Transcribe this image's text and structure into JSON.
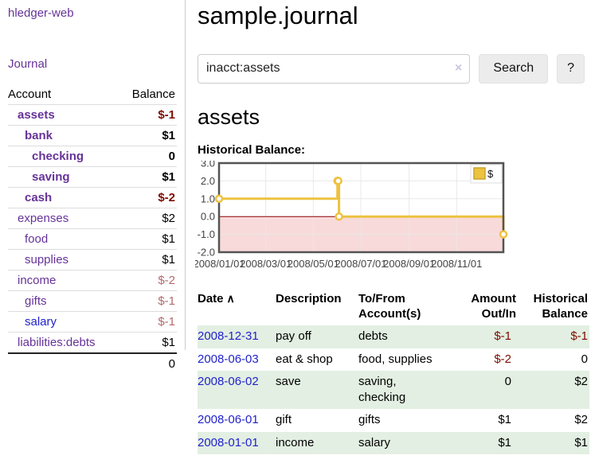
{
  "app": {
    "title": "hledger-web"
  },
  "nav": {
    "journal_label": "Journal"
  },
  "sidebar": {
    "accounts_table": {
      "headers": {
        "account": "Account",
        "balance": "Balance"
      },
      "rows": [
        {
          "name": "assets",
          "balance": "$-1",
          "indent": 1,
          "bold": true,
          "link_color": "purple",
          "balance_color": "neg-strong"
        },
        {
          "name": "bank",
          "balance": "$1",
          "indent": 2,
          "bold": true,
          "link_color": "purple",
          "balance_color": ""
        },
        {
          "name": "checking",
          "balance": "0",
          "indent": 3,
          "bold": true,
          "link_color": "purple",
          "balance_color": ""
        },
        {
          "name": "saving",
          "balance": "$1",
          "indent": 3,
          "bold": true,
          "link_color": "purple",
          "balance_color": ""
        },
        {
          "name": "cash",
          "balance": "$-2",
          "indent": 2,
          "bold": true,
          "link_color": "purple",
          "balance_color": "neg-strong"
        },
        {
          "name": "expenses",
          "balance": "$2",
          "indent": 1,
          "bold": false,
          "link_color": "purple",
          "balance_color": ""
        },
        {
          "name": "food",
          "balance": "$1",
          "indent": 2,
          "bold": false,
          "link_color": "purple",
          "balance_color": ""
        },
        {
          "name": "supplies",
          "balance": "$1",
          "indent": 2,
          "bold": false,
          "link_color": "purple",
          "balance_color": ""
        },
        {
          "name": "income",
          "balance": "$-2",
          "indent": 1,
          "bold": false,
          "link_color": "purple",
          "balance_color": "neg-muted"
        },
        {
          "name": "gifts",
          "balance": "$-1",
          "indent": 2,
          "bold": false,
          "link_color": "purple",
          "balance_color": "neg-muted"
        },
        {
          "name": "salary",
          "balance": "$-1",
          "indent": 2,
          "bold": false,
          "link_color": "blue",
          "balance_color": "neg-muted"
        },
        {
          "name": "liabilities:debts",
          "balance": "$1",
          "indent": 1,
          "bold": false,
          "link_color": "purple",
          "balance_color": ""
        }
      ],
      "total": "0"
    }
  },
  "header": {
    "title": "sample.journal"
  },
  "search": {
    "query": "inacct:assets",
    "clear_icon": "×",
    "search_label": "Search",
    "help_label": "?"
  },
  "account_page": {
    "heading": "assets",
    "chart_title": "Historical Balance:"
  },
  "chart_data": {
    "type": "line",
    "style": "steps-with-markers",
    "title": "Historical Balance:",
    "series": [
      {
        "name": "$",
        "color": "#edc240",
        "points": [
          [
            "2008-01-01",
            1
          ],
          [
            "2008-06-01",
            2
          ],
          [
            "2008-06-02",
            2
          ],
          [
            "2008-06-03",
            0
          ],
          [
            "2008-12-31",
            -1
          ]
        ]
      }
    ],
    "xrange": [
      "2008-01-01",
      "2008-12-31"
    ],
    "xticks": [
      {
        "date": "2008-01-01",
        "label": "2008/01/01"
      },
      {
        "date": "2008-03-01",
        "label": "2008/03/01"
      },
      {
        "date": "2008-05-01",
        "label": "2008/05/01"
      },
      {
        "date": "2008-07-01",
        "label": "2008/07/01"
      },
      {
        "date": "2008-09-01",
        "label": "2008/09/01"
      },
      {
        "date": "2008-11-01",
        "label": "2008/11/01"
      }
    ],
    "ylim": [
      -2,
      3
    ],
    "yticks": [
      {
        "value": 3,
        "label": "3.0"
      },
      {
        "value": 2,
        "label": "2.0"
      },
      {
        "value": 1,
        "label": "1.0"
      },
      {
        "value": 0,
        "label": "0.0"
      },
      {
        "value": -1,
        "label": "-1.0"
      },
      {
        "value": -2,
        "label": "-2.0"
      }
    ],
    "grid": true,
    "negative_region_fill": "#f9dada",
    "zero_line_color": "#8b0000",
    "border_color": "#545454",
    "legend": {
      "label": "$",
      "position": "top-right"
    }
  },
  "register": {
    "sort_icon": "∧",
    "headers": [
      {
        "l1": "Date",
        "l2": ""
      },
      {
        "l1": "Description",
        "l2": ""
      },
      {
        "l1": "To/From",
        "l2": "Account(s)"
      },
      {
        "l1": "Amount",
        "l2": "Out/In"
      },
      {
        "l1": "Historical",
        "l2": "Balance"
      }
    ],
    "rows": [
      {
        "date": "2008-12-31",
        "description": "pay off",
        "accounts": "debts",
        "amount": "$-1",
        "balance": "$-1",
        "amount_negative": true,
        "balance_negative": true,
        "shaded": true
      },
      {
        "date": "2008-06-03",
        "description": "eat & shop",
        "accounts": "food, supplies",
        "amount": "$-2",
        "balance": "0",
        "amount_negative": true,
        "balance_negative": false,
        "shaded": false
      },
      {
        "date": "2008-06-02",
        "description": "save",
        "accounts": "saving, checking",
        "amount": "0",
        "balance": "$2",
        "amount_negative": false,
        "balance_negative": false,
        "shaded": true
      },
      {
        "date": "2008-06-01",
        "description": "gift",
        "accounts": "gifts",
        "amount": "$1",
        "balance": "$2",
        "amount_negative": false,
        "balance_negative": false,
        "shaded": false
      },
      {
        "date": "2008-01-01",
        "description": "income",
        "accounts": "salary",
        "amount": "$1",
        "balance": "$1",
        "amount_negative": false,
        "balance_negative": false,
        "shaded": true
      }
    ]
  }
}
